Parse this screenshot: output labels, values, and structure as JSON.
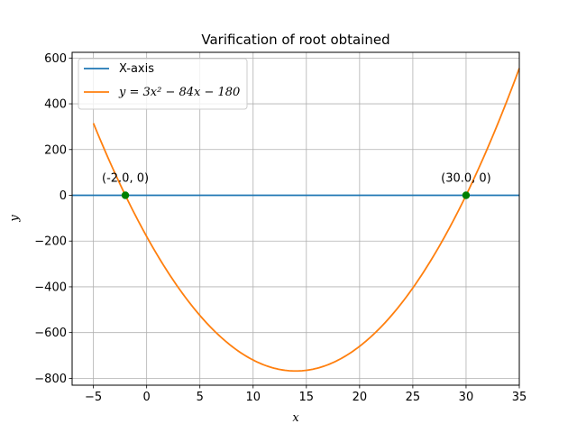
{
  "chart_data": {
    "type": "line",
    "title": "Varification of root obtained",
    "xlabel": "x",
    "ylabel": "y",
    "xlim": [
      -7,
      35
    ],
    "ylim": [
      -830,
      625
    ],
    "xticks": [
      -5,
      0,
      5,
      10,
      15,
      20,
      25,
      30,
      35
    ],
    "xtick_labels": [
      "−5",
      "0",
      "5",
      "10",
      "15",
      "20",
      "25",
      "30",
      "35"
    ],
    "yticks": [
      -800,
      -600,
      -400,
      -200,
      0,
      200,
      400,
      600
    ],
    "ytick_labels": [
      "−800",
      "−600",
      "−400",
      "−200",
      "0",
      "200",
      "400",
      "600"
    ],
    "grid": true,
    "legend_position": "top-left",
    "series": [
      {
        "name": "X-axis",
        "kind": "hline",
        "y": 0,
        "color": "#1f77b4"
      },
      {
        "name": "y = 3x² − 84x − 180",
        "kind": "function",
        "coefficients": [
          3,
          -84,
          -180
        ],
        "domain": [
          -5,
          35
        ],
        "color": "#ff7f0e"
      }
    ],
    "points": [
      {
        "x": -2.0,
        "y": 0,
        "label": "(-2.0, 0)",
        "color": "#008000"
      },
      {
        "x": 30.0,
        "y": 0,
        "label": "(30.0, 0)",
        "color": "#008000"
      }
    ]
  }
}
